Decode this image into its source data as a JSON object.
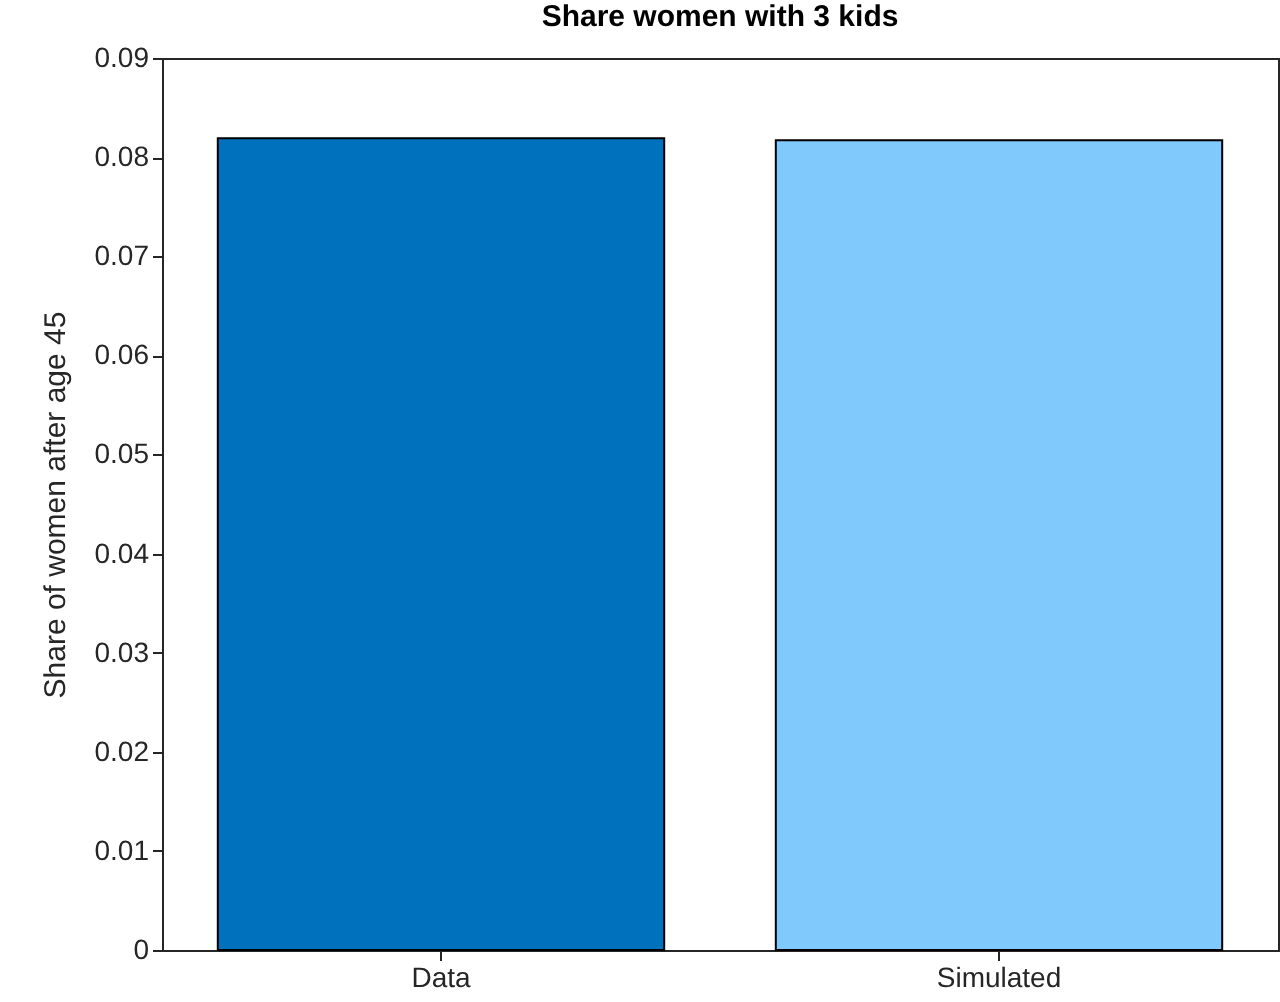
{
  "chart_data": {
    "type": "bar",
    "title": "Share women with 3 kids",
    "ylabel": "Share of women after age 45",
    "categories": [
      "Data",
      "Simulated"
    ],
    "values": [
      0.0819,
      0.0817
    ],
    "colors": [
      "#0072bd",
      "#80c9fc"
    ],
    "ylim": [
      0,
      0.09
    ],
    "yticks": [
      0,
      0.01,
      0.02,
      0.03,
      0.04,
      0.05,
      0.06,
      0.07,
      0.08,
      0.09
    ],
    "grid": false,
    "legend": false
  }
}
